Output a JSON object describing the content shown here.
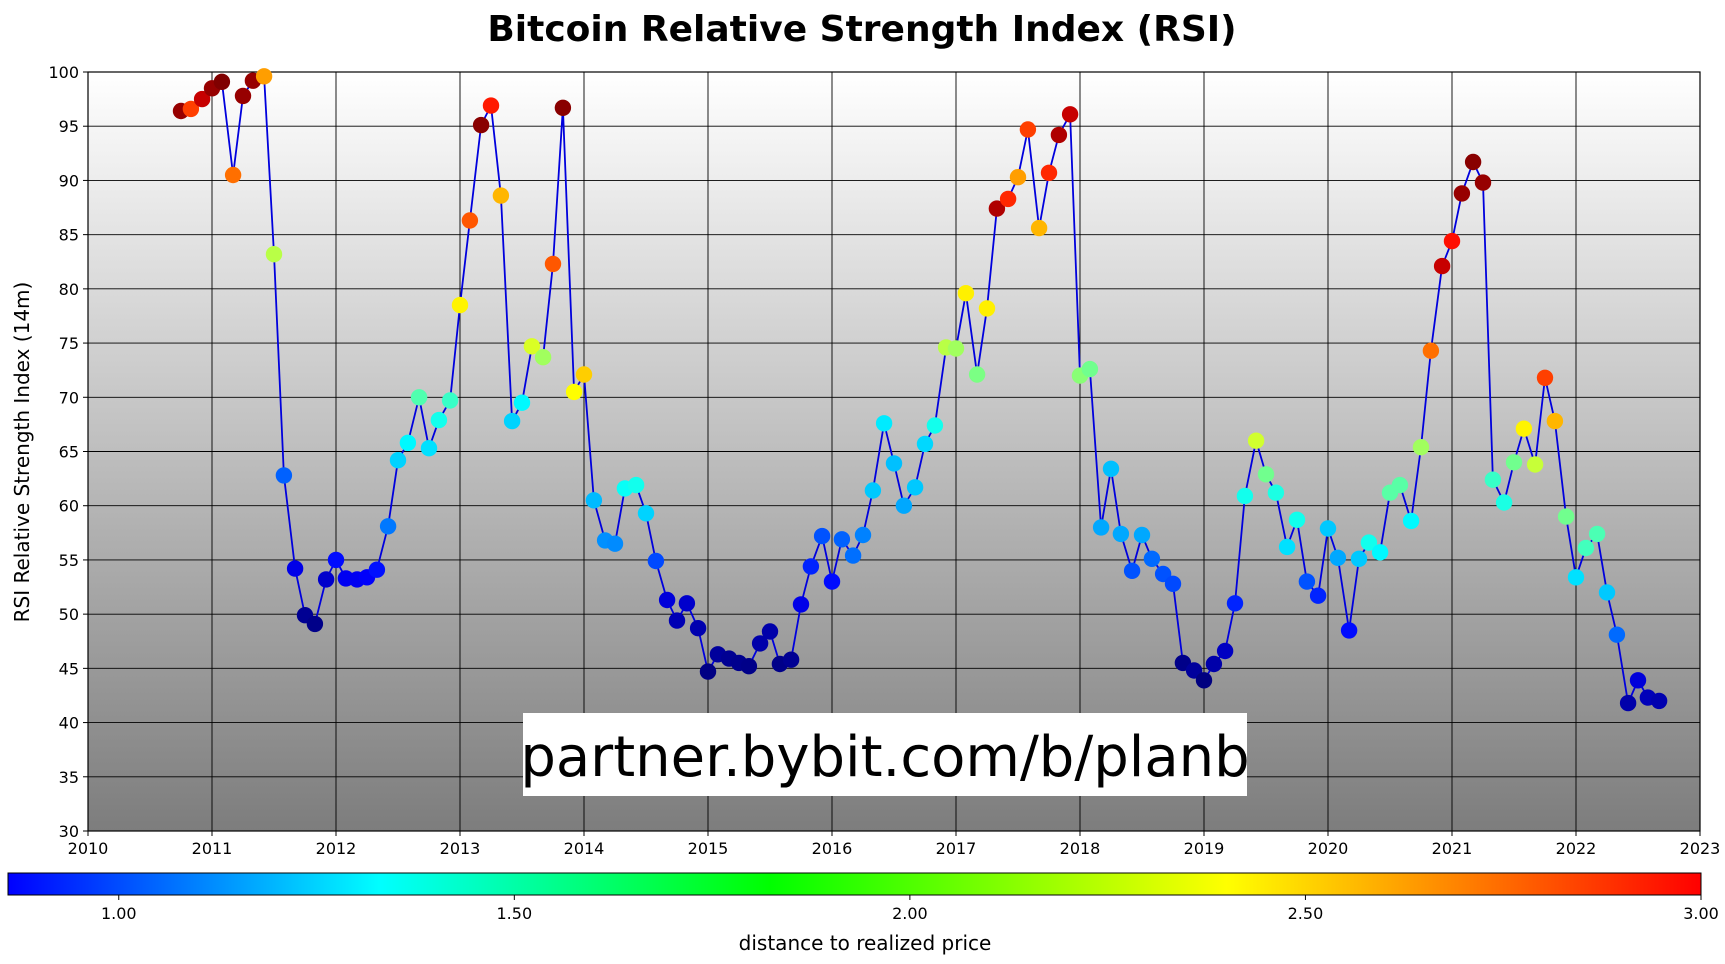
{
  "chart_data": {
    "type": "scatter",
    "title": "Bitcoin Relative Strength Index (RSI)",
    "xlabel": "",
    "ylabel": "RSI Relative Strength Index (14m)",
    "xlim": [
      2010,
      2023
    ],
    "ylim": [
      30,
      100
    ],
    "x_ticks": [
      "2010",
      "2011",
      "2012",
      "2013",
      "2014",
      "2015",
      "2016",
      "2017",
      "2018",
      "2019",
      "2020",
      "2021",
      "2022",
      "2023"
    ],
    "y_ticks": [
      "30",
      "35",
      "40",
      "45",
      "50",
      "55",
      "60",
      "65",
      "70",
      "75",
      "80",
      "85",
      "90",
      "95",
      "100"
    ],
    "grid": true,
    "line_color": "#0000dd",
    "colorbar": {
      "label": "distance to realized price",
      "range": [
        0.86,
        3.0
      ],
      "ticks": [
        "1.00",
        "1.50",
        "2.00",
        "2.50",
        "3.00"
      ],
      "colormap": "jet"
    },
    "watermark": "partner.bybit.com/b/planb",
    "series": [
      {
        "x": [
          2010.75,
          2010.83,
          2010.92,
          2011.0,
          2011.08,
          2011.17,
          2011.25,
          2011.33,
          2011.42,
          2011.5,
          2011.58,
          2011.67,
          2011.75,
          2011.83,
          2011.92,
          2012.0,
          2012.08,
          2012.17,
          2012.25,
          2012.33,
          2012.42,
          2012.5,
          2012.58,
          2012.67,
          2012.75,
          2012.83,
          2012.92,
          2013.0,
          2013.08,
          2013.17,
          2013.25,
          2013.33,
          2013.42,
          2013.5,
          2013.58,
          2013.67,
          2013.75,
          2013.83,
          2013.92,
          2014.0,
          2014.08,
          2014.17,
          2014.25,
          2014.33,
          2014.42,
          2014.5,
          2014.58,
          2014.67,
          2014.75,
          2014.83,
          2014.92,
          2015.0,
          2015.08,
          2015.17,
          2015.25,
          2015.33,
          2015.42,
          2015.5,
          2015.58,
          2015.67,
          2015.75,
          2015.83,
          2015.92,
          2016.0,
          2016.08,
          2016.17,
          2016.25,
          2016.33,
          2016.42,
          2016.5,
          2016.58,
          2016.67,
          2016.75,
          2016.83,
          2016.92,
          2017.0,
          2017.08,
          2017.17,
          2017.25,
          2017.33,
          2017.42,
          2017.5,
          2017.58,
          2017.67,
          2017.75,
          2017.83,
          2017.92,
          2018.0,
          2018.08,
          2018.17,
          2018.25,
          2018.33,
          2018.42,
          2018.5,
          2018.58,
          2018.67,
          2018.75,
          2018.83,
          2018.92,
          2019.0,
          2019.08,
          2019.17,
          2019.25,
          2019.33,
          2019.42,
          2019.5,
          2019.58,
          2019.67,
          2019.75,
          2019.83,
          2019.92,
          2020.0,
          2020.08,
          2020.17,
          2020.25,
          2020.33,
          2020.42,
          2020.5,
          2020.58,
          2020.67,
          2020.75,
          2020.83,
          2020.92,
          2021.0,
          2021.08,
          2021.17,
          2021.25,
          2021.33,
          2021.42,
          2021.5,
          2021.58,
          2021.67,
          2021.75,
          2021.83,
          2021.92,
          2022.0,
          2022.08,
          2022.17,
          2022.25,
          2022.33,
          2022.42,
          2022.5,
          2022.58,
          2022.67
        ],
        "y": [
          96.4,
          96.6,
          97.5,
          98.5,
          99.1,
          90.5,
          97.8,
          99.2,
          99.6,
          83.2,
          62.8,
          54.2,
          49.9,
          49.1,
          53.2,
          55.0,
          53.3,
          53.2,
          53.4,
          54.1,
          58.1,
          64.2,
          65.8,
          70.0,
          65.3,
          67.9,
          69.7,
          78.5,
          86.3,
          95.1,
          96.9,
          88.6,
          67.8,
          69.5,
          74.7,
          73.7,
          82.3,
          96.7,
          70.5,
          72.1,
          60.5,
          56.8,
          56.5,
          61.6,
          61.9,
          59.3,
          54.9,
          51.3,
          49.4,
          51.0,
          48.7,
          44.7,
          46.3,
          45.9,
          45.5,
          45.2,
          47.3,
          48.4,
          45.4,
          45.8,
          50.9,
          54.4,
          57.2,
          53.0,
          56.9,
          55.4,
          57.3,
          61.4,
          67.6,
          63.9,
          60.0,
          61.7,
          65.7,
          67.4,
          74.6,
          74.5,
          79.6,
          72.1,
          78.2,
          87.4,
          88.3,
          90.3,
          94.7,
          85.6,
          90.7,
          94.2,
          96.1,
          72.0,
          72.6,
          58.0,
          63.4,
          57.4,
          54.0,
          57.3,
          55.1,
          53.7,
          52.8,
          45.5,
          44.8,
          43.9,
          45.4,
          46.6,
          51.0,
          60.9,
          66.0,
          62.9,
          61.2,
          56.2,
          58.7,
          53.0,
          51.7,
          57.9,
          55.2,
          48.5,
          55.1,
          56.6,
          55.7,
          61.2,
          61.9,
          58.6,
          65.4,
          74.3,
          82.1,
          84.4,
          88.8,
          91.7,
          89.8,
          62.4,
          60.3,
          64.0,
          67.1,
          63.8,
          71.8,
          67.8,
          59.0,
          53.4,
          56.1,
          57.4,
          52.0,
          48.1,
          41.8,
          43.9,
          42.3,
          42.0
        ],
        "c": [
          2.95,
          2.6,
          2.85,
          2.95,
          3.0,
          2.5,
          2.95,
          2.95,
          2.4,
          2.05,
          1.33,
          1.08,
          0.9,
          0.88,
          1.02,
          1.15,
          1.1,
          1.1,
          1.12,
          1.16,
          1.38,
          1.57,
          1.65,
          1.83,
          1.6,
          1.7,
          1.78,
          2.22,
          2.55,
          2.98,
          2.68,
          2.35,
          1.57,
          1.65,
          2.12,
          2.0,
          2.55,
          2.98,
          2.2,
          2.3,
          1.52,
          1.43,
          1.42,
          1.68,
          1.7,
          1.57,
          1.28,
          1.05,
          0.97,
          1.02,
          0.96,
          0.87,
          0.92,
          0.9,
          0.89,
          0.88,
          0.95,
          0.95,
          0.88,
          0.9,
          1.08,
          1.2,
          1.3,
          1.15,
          1.33,
          1.36,
          1.4,
          1.55,
          1.62,
          1.53,
          1.48,
          1.55,
          1.58,
          1.7,
          2.05,
          2.0,
          2.23,
          1.92,
          2.23,
          2.9,
          2.65,
          2.4,
          2.6,
          2.35,
          2.65,
          2.9,
          2.85,
          1.95,
          1.9,
          1.48,
          1.53,
          1.48,
          1.3,
          1.48,
          1.35,
          1.3,
          1.28,
          0.88,
          0.92,
          0.86,
          0.95,
          1.0,
          1.2,
          1.7,
          2.1,
          1.9,
          1.72,
          1.6,
          1.7,
          1.3,
          1.2,
          1.55,
          1.48,
          1.15,
          1.55,
          1.7,
          1.65,
          1.85,
          1.85,
          1.65,
          2.0,
          2.5,
          2.85,
          2.7,
          2.95,
          2.98,
          2.95,
          1.78,
          1.72,
          1.9,
          2.22,
          2.08,
          2.6,
          2.35,
          1.9,
          1.6,
          1.8,
          1.82,
          1.55,
          1.35,
          0.95,
          1.05,
          0.98,
          0.96
        ]
      }
    ]
  }
}
